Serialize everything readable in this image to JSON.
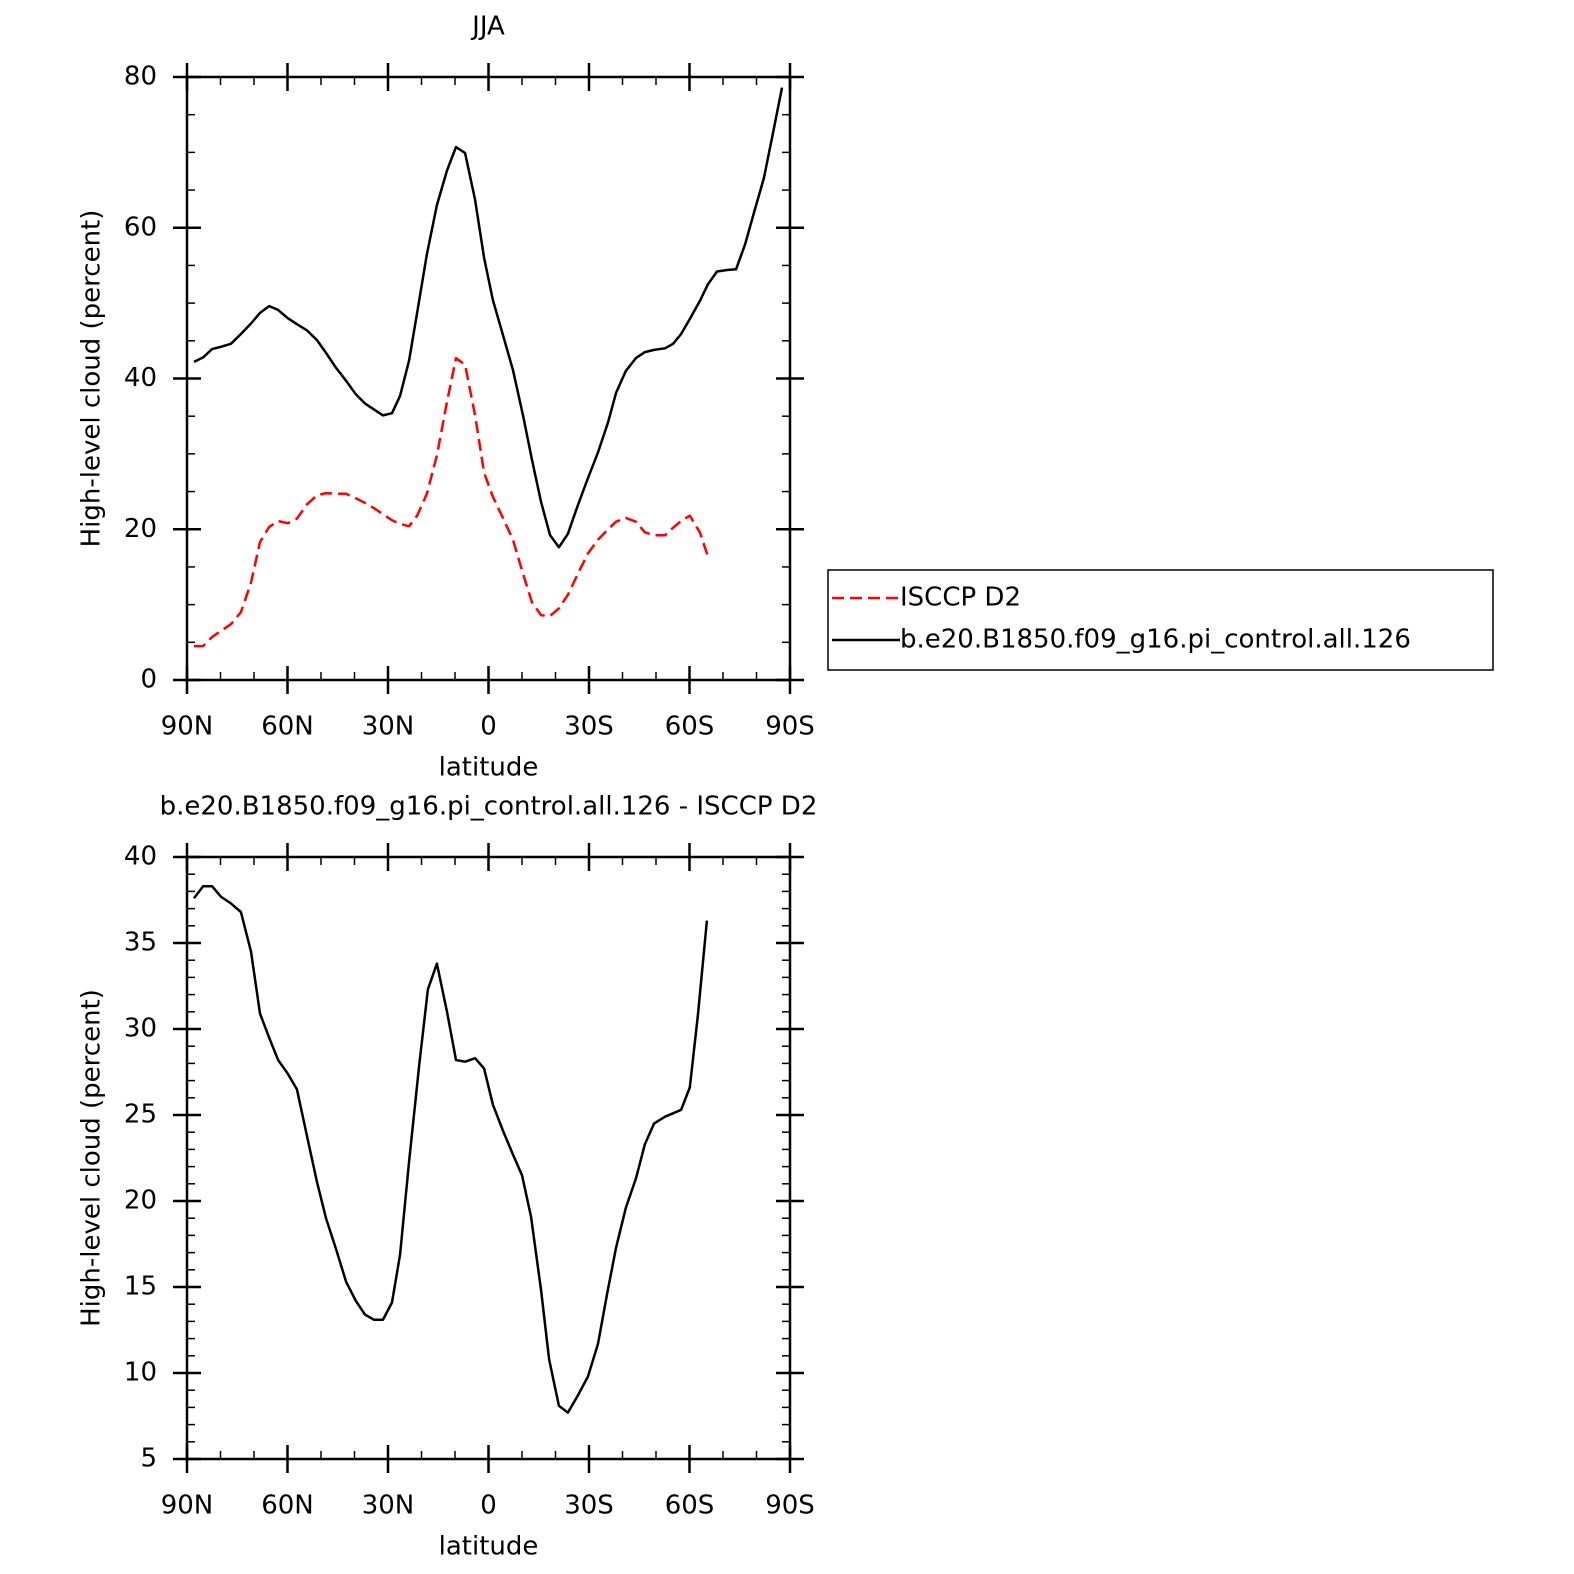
{
  "chart_data": [
    {
      "type": "line",
      "title": "JJA",
      "xlabel": "latitude",
      "ylabel": "High-level cloud (percent)",
      "xlim": [
        90,
        -90
      ],
      "xticks": [
        {
          "value": 90,
          "label": "90N"
        },
        {
          "value": 60,
          "label": "60N"
        },
        {
          "value": 30,
          "label": "30N"
        },
        0,
        {
          "value": -30,
          "label": "30S"
        },
        {
          "value": -60,
          "label": "60S"
        },
        {
          "value": -90,
          "label": "90S"
        }
      ],
      "ylim": [
        0,
        80
      ],
      "yticks": [
        0,
        20,
        40,
        60,
        80
      ],
      "legend": "right",
      "x": [
        87.9,
        85.2,
        82.5,
        79.9,
        76.9,
        73.9,
        70.9,
        68.2,
        65.5,
        62.8,
        59.9,
        57.2,
        54.2,
        51.2,
        48.5,
        45.5,
        42.5,
        39.6,
        36.9,
        34.2,
        31.5,
        28.8,
        26.4,
        23.7,
        21.3,
        18.4,
        15.4,
        12.4,
        9.7,
        7.0,
        4.0,
        1.3,
        -1.3,
        -4.3,
        -7.3,
        -10.3,
        -13.0,
        -15.7,
        -18.4,
        -21.0,
        -23.7,
        -26.7,
        -29.7,
        -32.7,
        -35.7,
        -38.1,
        -41.0,
        -44.0,
        -46.7,
        -49.4,
        -52.7,
        -55.1,
        -57.5,
        -60.1,
        -63.1,
        -65.5,
        -68.2,
        -71.2,
        -73.9,
        -76.6,
        -79.3,
        -82.2,
        -84.9,
        -87.6
      ],
      "series": [
        {
          "name": "ISCCP D2",
          "color": "#ff0000",
          "style": "dashed",
          "values": [
            4.5,
            4.5,
            5.7,
            6.5,
            7.4,
            9.0,
            12.9,
            18.3,
            20.3,
            21.1,
            20.8,
            21.4,
            23.3,
            24.5,
            24.8,
            24.7,
            24.7,
            24.1,
            23.5,
            22.8,
            22.0,
            21.2,
            20.7,
            20.4,
            21.8,
            24.7,
            29.8,
            36.9,
            42.7,
            41.8,
            35.1,
            27.5,
            24.3,
            21.5,
            18.6,
            14.1,
            10.3,
            8.6,
            8.5,
            9.5,
            11.3,
            14.1,
            16.8,
            18.6,
            20.0,
            21.0,
            21.5,
            21.0,
            19.6,
            19.2,
            19.2,
            20.2,
            21.1,
            21.8,
            19.6,
            16.4,
            null,
            null,
            null,
            null,
            null,
            null,
            null,
            null
          ]
        },
        {
          "name": "b.e20.B1850.f09_g16.pi_control.all.126",
          "color": "#000000",
          "style": "solid",
          "values": [
            42.2,
            42.8,
            43.9,
            44.2,
            44.6,
            45.9,
            47.3,
            48.7,
            49.6,
            49.1,
            48.0,
            47.2,
            46.4,
            45.1,
            43.4,
            41.4,
            39.7,
            37.9,
            36.7,
            35.9,
            35.1,
            35.4,
            37.7,
            42.4,
            48.7,
            56.5,
            63.0,
            67.6,
            70.7,
            69.9,
            63.7,
            56.0,
            50.4,
            45.8,
            41.1,
            35.1,
            29.2,
            23.6,
            19.2,
            17.6,
            19.4,
            23.2,
            26.8,
            30.2,
            34.2,
            38.1,
            41.0,
            42.7,
            43.5,
            43.8,
            44.0,
            44.6,
            45.9,
            47.9,
            50.3,
            52.5,
            54.2,
            54.4,
            54.5,
            57.8,
            62.1,
            66.6,
            72.5,
            78.6
          ]
        }
      ]
    },
    {
      "type": "line",
      "title": "b.e20.B1850.f09_g16.pi_control.all.126 - ISCCP D2",
      "xlabel": "latitude",
      "ylabel": "High-level cloud (percent)",
      "xlim": [
        90,
        -90
      ],
      "xticks": [
        {
          "value": 90,
          "label": "90N"
        },
        {
          "value": 60,
          "label": "60N"
        },
        {
          "value": 30,
          "label": "30N"
        },
        0,
        {
          "value": -30,
          "label": "30S"
        },
        {
          "value": -60,
          "label": "60S"
        },
        {
          "value": -90,
          "label": "90S"
        }
      ],
      "ylim": [
        5,
        40
      ],
      "yticks": [
        5,
        10,
        15,
        20,
        25,
        30,
        35,
        40
      ],
      "x": [
        87.9,
        85.2,
        82.5,
        79.9,
        76.9,
        73.9,
        70.9,
        68.2,
        65.5,
        62.8,
        59.9,
        57.2,
        54.2,
        51.2,
        48.5,
        45.5,
        42.5,
        39.6,
        36.9,
        34.2,
        31.5,
        28.8,
        26.4,
        23.7,
        20.7,
        18.1,
        15.4,
        12.4,
        9.7,
        7.0,
        4.0,
        1.3,
        -1.3,
        -4.3,
        -7.3,
        -10.0,
        -12.7,
        -15.7,
        -18.1,
        -21.0,
        -23.7,
        -26.7,
        -29.7,
        -32.7,
        -35.4,
        -38.1,
        -41.0,
        -44.0,
        -46.7,
        -49.4,
        -52.7,
        -55.1,
        -57.5,
        -60.1,
        -62.5,
        -65.2
      ],
      "series": [
        {
          "color": "#000000",
          "style": "solid",
          "values": [
            37.6,
            38.3,
            38.3,
            37.7,
            37.3,
            36.8,
            34.5,
            30.9,
            29.5,
            28.2,
            27.4,
            26.5,
            23.8,
            21.1,
            19.0,
            17.2,
            15.3,
            14.2,
            13.4,
            13.1,
            13.1,
            14.1,
            16.9,
            22.3,
            27.9,
            32.3,
            33.8,
            31.0,
            28.2,
            28.1,
            28.3,
            27.7,
            25.6,
            24.1,
            22.7,
            21.5,
            19.1,
            14.8,
            10.8,
            8.1,
            7.7,
            8.7,
            9.8,
            11.7,
            14.6,
            17.3,
            19.6,
            21.3,
            23.3,
            24.5,
            24.9,
            25.1,
            25.3,
            26.6,
            30.8,
            36.3
          ]
        }
      ]
    }
  ]
}
